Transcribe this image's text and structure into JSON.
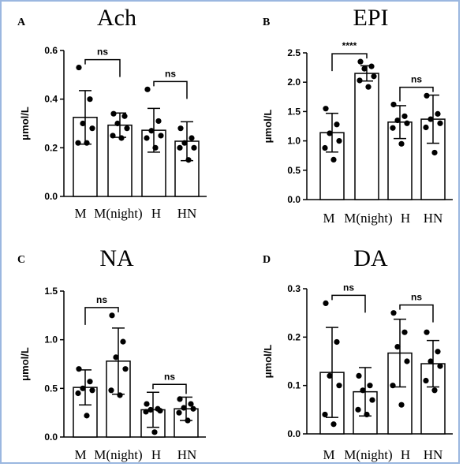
{
  "chart_data": [
    {
      "panel": "A",
      "title": "Ach",
      "type": "bar",
      "ylabel": "μmol/L",
      "ylim": [
        0,
        0.6
      ],
      "yticks": [
        "0.0",
        "0.2",
        "0.4",
        "0.6"
      ],
      "categories": [
        "M",
        "M(night)",
        "H",
        "HN"
      ],
      "values": [
        0.325,
        0.293,
        0.272,
        0.227
      ],
      "errors": [
        0.11,
        0.05,
        0.09,
        0.08
      ],
      "points": [
        [
          0.53,
          0.4,
          0.3,
          0.28,
          0.22,
          0.22
        ],
        [
          0.34,
          0.33,
          0.3,
          0.28,
          0.25,
          0.24
        ],
        [
          0.44,
          0.31,
          0.27,
          0.25,
          0.24,
          0.2
        ],
        [
          0.28,
          0.24,
          0.22,
          0.2,
          0.2,
          0.15
        ]
      ],
      "comparisons": [
        {
          "from": 0,
          "to": 1,
          "label": "ns"
        },
        {
          "from": 2,
          "to": 3,
          "label": "ns"
        }
      ]
    },
    {
      "panel": "B",
      "title": "EPI",
      "type": "bar",
      "ylabel": "μmol/L",
      "ylim": [
        0,
        2.5
      ],
      "yticks": [
        "0.0",
        "0.5",
        "1.0",
        "1.5",
        "2.0",
        "2.5"
      ],
      "categories": [
        "M",
        "M(night)",
        "H",
        "HN"
      ],
      "values": [
        1.14,
        2.15,
        1.32,
        1.37
      ],
      "errors": [
        0.33,
        0.13,
        0.28,
        0.41
      ],
      "points": [
        [
          1.55,
          1.28,
          1.13,
          1.0,
          0.88,
          0.68
        ],
        [
          2.35,
          2.27,
          2.23,
          2.1,
          2.03,
          1.92
        ],
        [
          1.62,
          1.42,
          1.35,
          1.3,
          1.22,
          0.95
        ],
        [
          1.77,
          1.46,
          1.37,
          1.3,
          1.23,
          0.8
        ]
      ],
      "comparisons": [
        {
          "from": 0,
          "to": 1,
          "label": "****"
        },
        {
          "from": 2,
          "to": 3,
          "label": "ns"
        }
      ]
    },
    {
      "panel": "C",
      "title": "NA",
      "type": "bar",
      "ylabel": "μmol/L",
      "ylim": [
        0,
        1.5
      ],
      "yticks": [
        "0.0",
        "0.5",
        "1.0",
        "1.5"
      ],
      "categories": [
        "M",
        "M(night)",
        "H",
        "HN"
      ],
      "values": [
        0.51,
        0.78,
        0.28,
        0.29
      ],
      "errors": [
        0.18,
        0.34,
        0.18,
        0.12
      ],
      "points": [
        [
          0.7,
          0.57,
          0.5,
          0.48,
          0.45,
          0.22
        ],
        [
          1.25,
          0.98,
          0.82,
          0.7,
          0.48,
          0.43
        ],
        [
          0.34,
          0.29,
          0.28,
          0.27,
          0.26,
          0.05
        ],
        [
          0.39,
          0.34,
          0.3,
          0.29,
          0.25,
          0.17
        ]
      ],
      "comparisons": [
        {
          "from": 0,
          "to": 1,
          "label": "ns"
        },
        {
          "from": 2,
          "to": 3,
          "label": "ns"
        }
      ]
    },
    {
      "panel": "D",
      "title": "DA",
      "type": "bar",
      "ylabel": "μmol/L",
      "ylim": [
        0,
        0.3
      ],
      "yticks": [
        "0.0",
        "0.1",
        "0.2",
        "0.3"
      ],
      "categories": [
        "M",
        "M(night)",
        "H",
        "HN"
      ],
      "values": [
        0.127,
        0.087,
        0.167,
        0.145
      ],
      "errors": [
        0.093,
        0.05,
        0.07,
        0.048
      ],
      "points": [
        [
          0.27,
          0.19,
          0.12,
          0.1,
          0.04,
          0.02
        ],
        [
          0.12,
          0.1,
          0.09,
          0.07,
          0.05,
          0.04
        ],
        [
          0.25,
          0.21,
          0.18,
          0.15,
          0.1,
          0.06
        ],
        [
          0.21,
          0.17,
          0.15,
          0.14,
          0.11,
          0.09
        ]
      ],
      "comparisons": [
        {
          "from": 0,
          "to": 1,
          "label": "ns"
        },
        {
          "from": 2,
          "to": 3,
          "label": "ns"
        }
      ]
    }
  ]
}
